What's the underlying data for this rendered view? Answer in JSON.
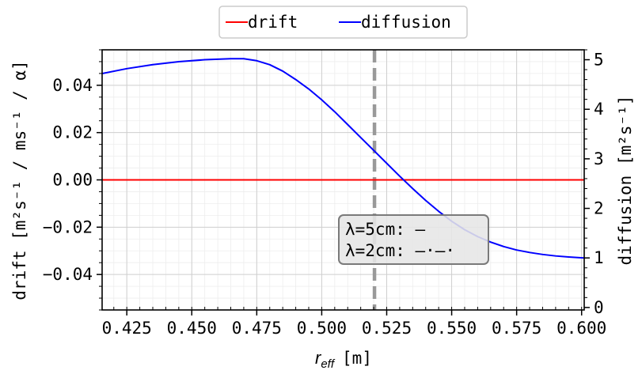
{
  "chart_data": {
    "type": "line",
    "x_label": "r_eff [m]",
    "x_label_sub": "eff",
    "x_label_unit": "[m]",
    "y_left_label": "drift [m²s⁻¹ / ms⁻¹ / α]",
    "y_right_label": "diffusion [m²s⁻¹]",
    "xlim": [
      0.4155,
      0.601
    ],
    "ylim_left": [
      -0.055,
      0.055
    ],
    "ylim_right": [
      -0.05,
      5.2
    ],
    "x_ticks": [
      0.425,
      0.45,
      0.475,
      0.5,
      0.525,
      0.55,
      0.575,
      0.6
    ],
    "x_tick_labels": [
      "0.425",
      "0.450",
      "0.475",
      "0.500",
      "0.525",
      "0.550",
      "0.575",
      "0.600"
    ],
    "y_left_ticks": [
      -0.04,
      -0.02,
      0.0,
      0.02,
      0.04
    ],
    "y_left_tick_labels": [
      "−0.04",
      "−0.02",
      "0.00",
      "0.02",
      "0.04"
    ],
    "y_right_ticks": [
      0,
      1,
      2,
      3,
      4,
      5
    ],
    "y_right_tick_labels": [
      "0",
      "1",
      "2",
      "3",
      "4",
      "5"
    ],
    "grid": true,
    "legend_position": "top-center",
    "series": [
      {
        "name": "drift",
        "color": "#ff0000",
        "axis": "left",
        "x": [
          0.4155,
          0.601
        ],
        "values": [
          0.0,
          0.0
        ]
      },
      {
        "name": "diffusion",
        "color": "#0000ff",
        "axis": "right",
        "x": [
          0.4155,
          0.425,
          0.435,
          0.445,
          0.455,
          0.465,
          0.47,
          0.475,
          0.48,
          0.485,
          0.49,
          0.495,
          0.5,
          0.505,
          0.51,
          0.515,
          0.52,
          0.525,
          0.53,
          0.535,
          0.54,
          0.545,
          0.55,
          0.555,
          0.56,
          0.565,
          0.57,
          0.575,
          0.58,
          0.585,
          0.59,
          0.595,
          0.601
        ],
        "values": [
          4.72,
          4.82,
          4.9,
          4.96,
          5.0,
          5.02,
          5.02,
          4.98,
          4.9,
          4.77,
          4.6,
          4.41,
          4.19,
          3.95,
          3.69,
          3.43,
          3.17,
          2.91,
          2.65,
          2.4,
          2.16,
          1.94,
          1.74,
          1.57,
          1.43,
          1.32,
          1.23,
          1.16,
          1.11,
          1.07,
          1.04,
          1.02,
          1.0
        ]
      }
    ],
    "vertical_line": {
      "x": 0.5203,
      "color": "#999999",
      "style": "dashed"
    },
    "annotation": {
      "lines": [
        "λ=5cm: —",
        "λ=2cm: —·—·"
      ]
    }
  }
}
